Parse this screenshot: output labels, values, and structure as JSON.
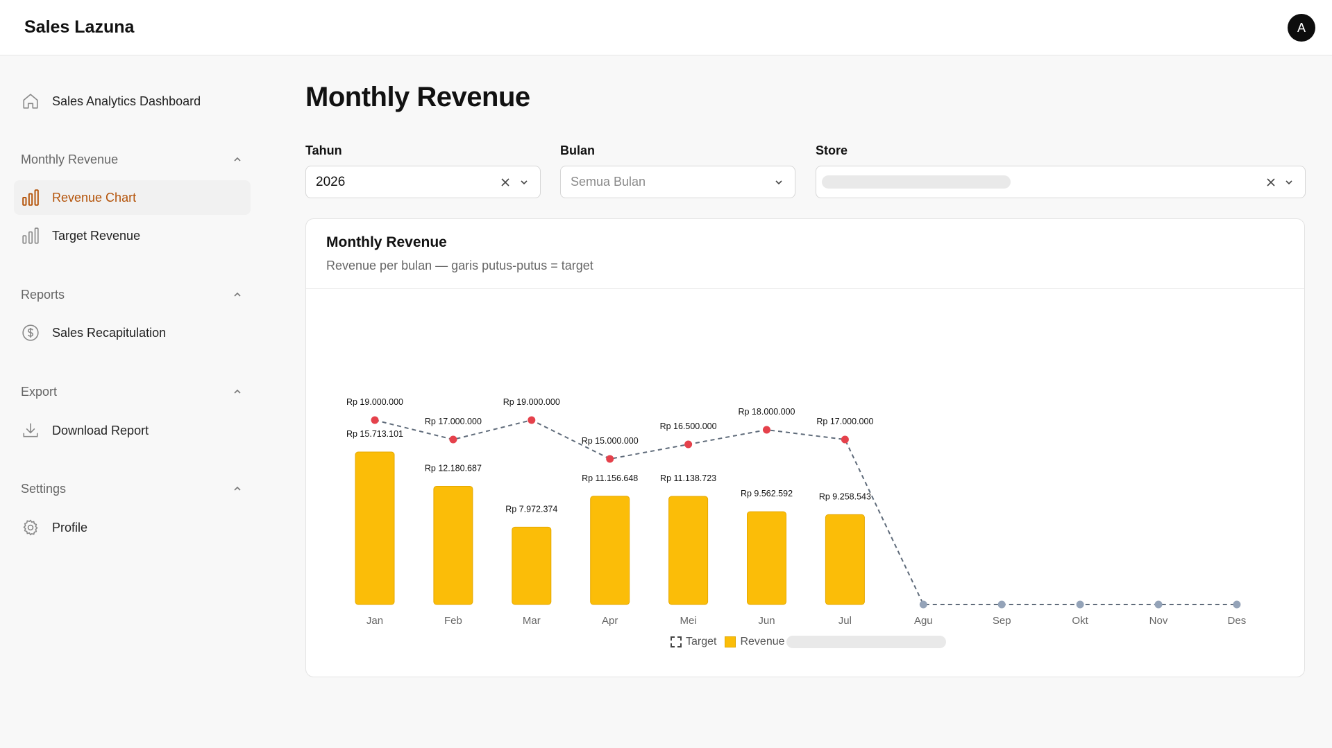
{
  "app": {
    "title": "Sales Lazuna",
    "avatar_initial": "A"
  },
  "sidebar": {
    "dashboard": {
      "label": "Sales Analytics Dashboard",
      "icon": "home-icon"
    },
    "sections": [
      {
        "label": "Monthly Revenue",
        "items": [
          {
            "label": "Revenue Chart",
            "icon": "bar-chart-icon",
            "active": true
          },
          {
            "label": "Target Revenue",
            "icon": "bar-chart-icon",
            "active": false
          }
        ]
      },
      {
        "label": "Reports",
        "items": [
          {
            "label": "Sales Recapitulation",
            "icon": "dollar-icon",
            "active": false
          }
        ]
      },
      {
        "label": "Export",
        "items": [
          {
            "label": "Download Report",
            "icon": "download-icon",
            "active": false
          }
        ]
      },
      {
        "label": "Settings",
        "items": [
          {
            "label": "Profile",
            "icon": "gear-icon",
            "active": false
          }
        ]
      }
    ]
  },
  "main": {
    "title": "Monthly Revenue",
    "filters": {
      "tahun": {
        "label": "Tahun",
        "value": "2026"
      },
      "bulan": {
        "label": "Bulan",
        "placeholder": "Semua Bulan"
      },
      "store": {
        "label": "Store"
      }
    },
    "card": {
      "title": "Monthly Revenue",
      "subtitle": "Revenue per bulan — garis putus-putus = target"
    }
  },
  "colors": {
    "accent": "#b45309",
    "bar": "#fbbd08",
    "bar_border": "#e5a800",
    "target_point": "#e5414b",
    "empty_point": "#94a3b8",
    "target_line": "#5f6b7a"
  },
  "chart_data": {
    "type": "bar",
    "categories": [
      "Jan",
      "Feb",
      "Mar",
      "Apr",
      "Mei",
      "Jun",
      "Jul",
      "Agu",
      "Sep",
      "Okt",
      "Nov",
      "Des"
    ],
    "series": [
      {
        "name": "Revenue",
        "type": "bar",
        "values": [
          15713101,
          12180687,
          7972374,
          11156648,
          11138723,
          9562592,
          9258543,
          null,
          null,
          null,
          null,
          null
        ],
        "labels": [
          "Rp 15.713.101",
          "Rp 12.180.687",
          "Rp 7.972.374",
          "Rp 11.156.648",
          "Rp 11.138.723",
          "Rp 9.562.592",
          "Rp 9.258.543",
          "",
          "",
          "",
          "",
          ""
        ]
      },
      {
        "name": "Target",
        "type": "line",
        "style": "dashed",
        "values": [
          19000000,
          17000000,
          19000000,
          15000000,
          16500000,
          18000000,
          17000000,
          0,
          0,
          0,
          0,
          0
        ],
        "labels": [
          "Rp 19.000.000",
          "Rp 17.000.000",
          "Rp 19.000.000",
          "Rp 15.000.000",
          "Rp 16.500.000",
          "Rp 18.000.000",
          "Rp 17.000.000",
          "",
          "",
          "",
          "",
          ""
        ]
      }
    ],
    "legend": [
      "Target",
      "Revenue"
    ],
    "legend_position": "bottom-center",
    "grid": false
  }
}
